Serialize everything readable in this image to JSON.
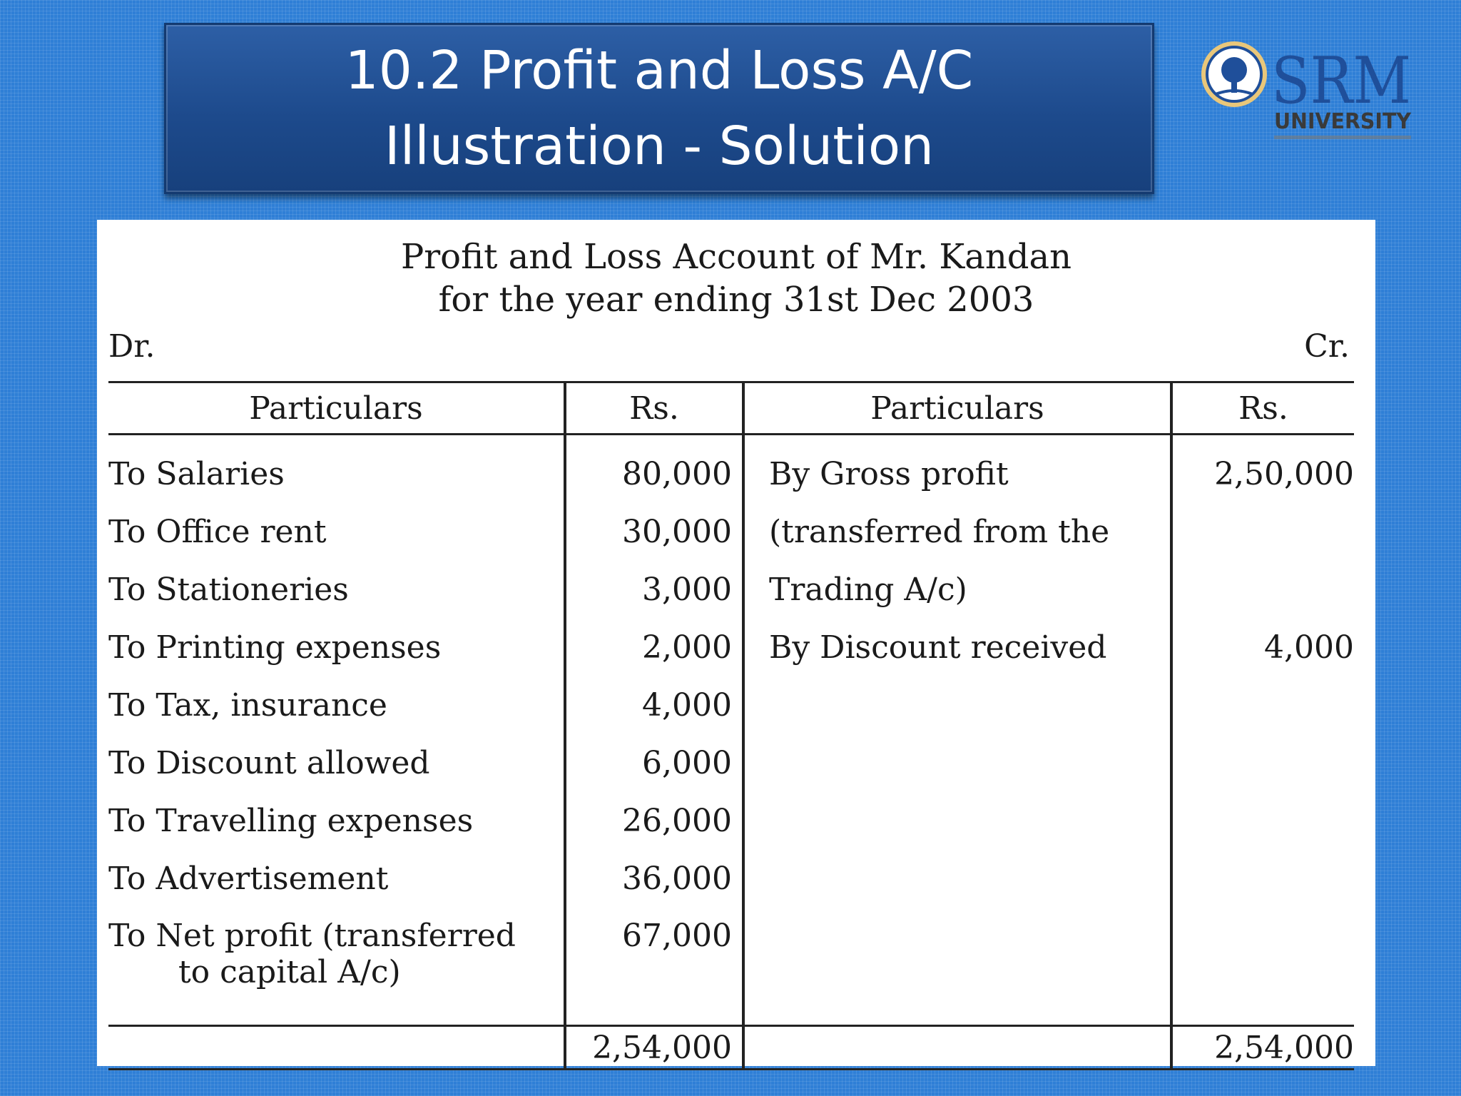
{
  "slide": {
    "title_line1": "10.2 Profit and Loss A/C",
    "title_line2": "Illustration - Solution"
  },
  "logo": {
    "name": "SRM",
    "subtitle": "UNIVERSITY",
    "icon": "tree-seal-icon"
  },
  "document": {
    "title_line1": "Profit and Loss Account of  Mr. Kandan",
    "title_line2": "for the year ending 31st Dec 2003",
    "dr_label": "Dr.",
    "cr_label": "Cr."
  },
  "table": {
    "headers": [
      "Particulars",
      "Rs.",
      "Particulars",
      "Rs."
    ],
    "debit": [
      {
        "particular": "To Salaries",
        "amount": "80,000"
      },
      {
        "particular": "To  Office rent",
        "amount": "30,000"
      },
      {
        "particular": "To Stationeries",
        "amount": "3,000"
      },
      {
        "particular": "To Printing expenses",
        "amount": "2,000"
      },
      {
        "particular": "To Tax, insurance",
        "amount": "4,000"
      },
      {
        "particular": "To Discount allowed",
        "amount": "6,000"
      },
      {
        "particular": "To Travelling expenses",
        "amount": "26,000"
      },
      {
        "particular": "To Advertisement",
        "amount": "36,000"
      },
      {
        "particular": "To Net profit (transferred",
        "particular_cont": "to capital A/c)",
        "amount": "67,000"
      }
    ],
    "credit": [
      {
        "particular": "By Gross profit",
        "amount": "2,50,000"
      },
      {
        "particular": "(transferred from the",
        "amount": ""
      },
      {
        "particular": "Trading A/c)",
        "amount": ""
      },
      {
        "particular": "By Discount received",
        "amount": "4,000"
      }
    ],
    "debit_total": "2,54,000",
    "credit_total": "2,54,000"
  }
}
